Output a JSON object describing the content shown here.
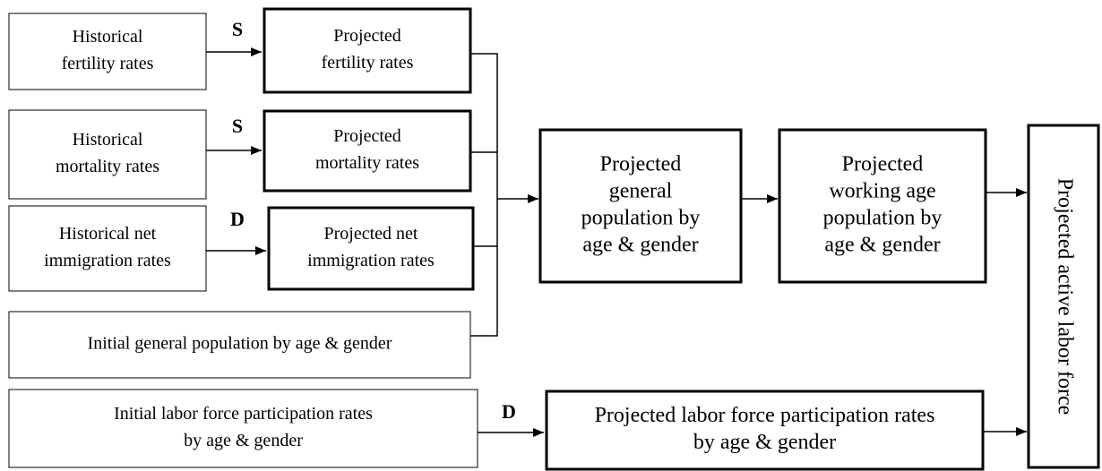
{
  "nodes": [
    {
      "lines": [
        "Historical",
        "fertility rates"
      ]
    },
    {
      "lines": [
        "Projected",
        "fertility rates"
      ]
    },
    {
      "lines": [
        "Historical",
        "mortality rates"
      ]
    },
    {
      "lines": [
        "Projected",
        "mortality rates"
      ]
    },
    {
      "lines": [
        "Historical net",
        "immigration rates"
      ]
    },
    {
      "lines": [
        "Projected net",
        "immigration rates"
      ]
    },
    {
      "lines": [
        "Initial general population by age & gender"
      ]
    },
    {
      "lines": [
        "Projected",
        "general",
        "population by",
        "age & gender"
      ]
    },
    {
      "lines": [
        "Projected",
        "working age",
        "population by",
        "age & gender"
      ]
    },
    {
      "lines": [
        "Projected active labor force"
      ]
    },
    {
      "lines": [
        "Initial labor force participation rates",
        "by age & gender"
      ]
    },
    {
      "lines": [
        "Projected labor force participation rates",
        "by age & gender"
      ]
    }
  ],
  "edges": [
    {
      "label": "S"
    },
    {
      "label": "S"
    },
    {
      "label": "D"
    },
    {
      "label": "D"
    }
  ]
}
